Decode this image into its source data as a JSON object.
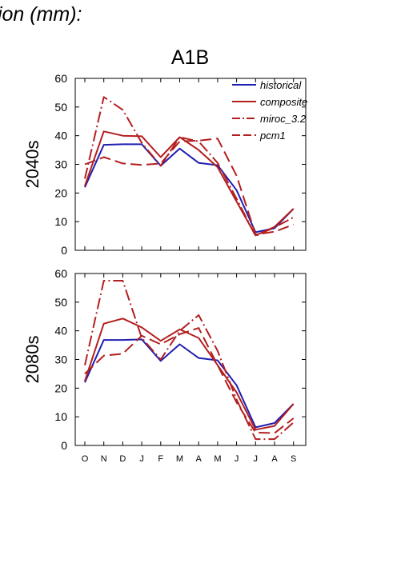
{
  "page_title": "tion (mm):",
  "chart_data": {
    "type": "line",
    "title": "A1B",
    "categories": [
      "O",
      "N",
      "D",
      "J",
      "F",
      "M",
      "A",
      "M",
      "J",
      "J",
      "A",
      "S"
    ],
    "ylim": [
      0,
      60
    ],
    "yticks": [
      0,
      10,
      20,
      30,
      40,
      50,
      60
    ],
    "legend_position": "top-right",
    "grid": false,
    "series_styles": [
      {
        "name": "historical",
        "color": "#1f1fb3",
        "dash": "solid"
      },
      {
        "name": "composite",
        "color": "#b31f1f",
        "dash": "solid"
      },
      {
        "name": "miroc_3.2",
        "color": "#b31f1f",
        "dash": "dash-dot"
      },
      {
        "name": "pcm1",
        "color": "#b31f1f",
        "dash": "long-dash"
      }
    ],
    "panels": [
      {
        "label": "2040s",
        "series": [
          {
            "name": "historical",
            "values": [
              22,
              36.8,
              37,
              37,
              29.5,
              35.5,
              30.5,
              29.7,
              21,
              6.3,
              7.7,
              14.5
            ]
          },
          {
            "name": "composite",
            "values": [
              22.5,
              41.5,
              40,
              39.8,
              32.5,
              39.5,
              35,
              29,
              17,
              5.2,
              8.2,
              14.5
            ]
          },
          {
            "name": "miroc_3.2",
            "values": [
              25,
              53.5,
              49,
              37.5,
              29.5,
              39.5,
              38,
              30.5,
              18,
              5,
              8,
              11.5
            ]
          },
          {
            "name": "pcm1",
            "values": [
              30,
              32.5,
              30.3,
              29.8,
              30.3,
              38,
              38.3,
              39,
              26,
              5.5,
              6.5,
              9
            ]
          }
        ]
      },
      {
        "label": "2080s",
        "series": [
          {
            "name": "historical",
            "values": [
              22,
              36.8,
              36.8,
              37,
              29.5,
              35.3,
              30.5,
              29.7,
              21,
              6.3,
              7.8,
              14.5
            ]
          },
          {
            "name": "composite",
            "values": [
              22.5,
              42.5,
              44.3,
              41.2,
              36.5,
              40.5,
              37.5,
              28,
              18.5,
              5.5,
              6.8,
              14.5
            ]
          },
          {
            "name": "miroc_3.2",
            "values": [
              28,
              57.5,
              57.5,
              37.5,
              30,
              40,
              45.5,
              33,
              16,
              2.2,
              2.2,
              8
            ]
          },
          {
            "name": "pcm1",
            "values": [
              25,
              31.3,
              32,
              38.3,
              35.3,
              38.8,
              41,
              28,
              15,
              4.5,
              4.3,
              9.5
            ]
          }
        ]
      }
    ]
  }
}
